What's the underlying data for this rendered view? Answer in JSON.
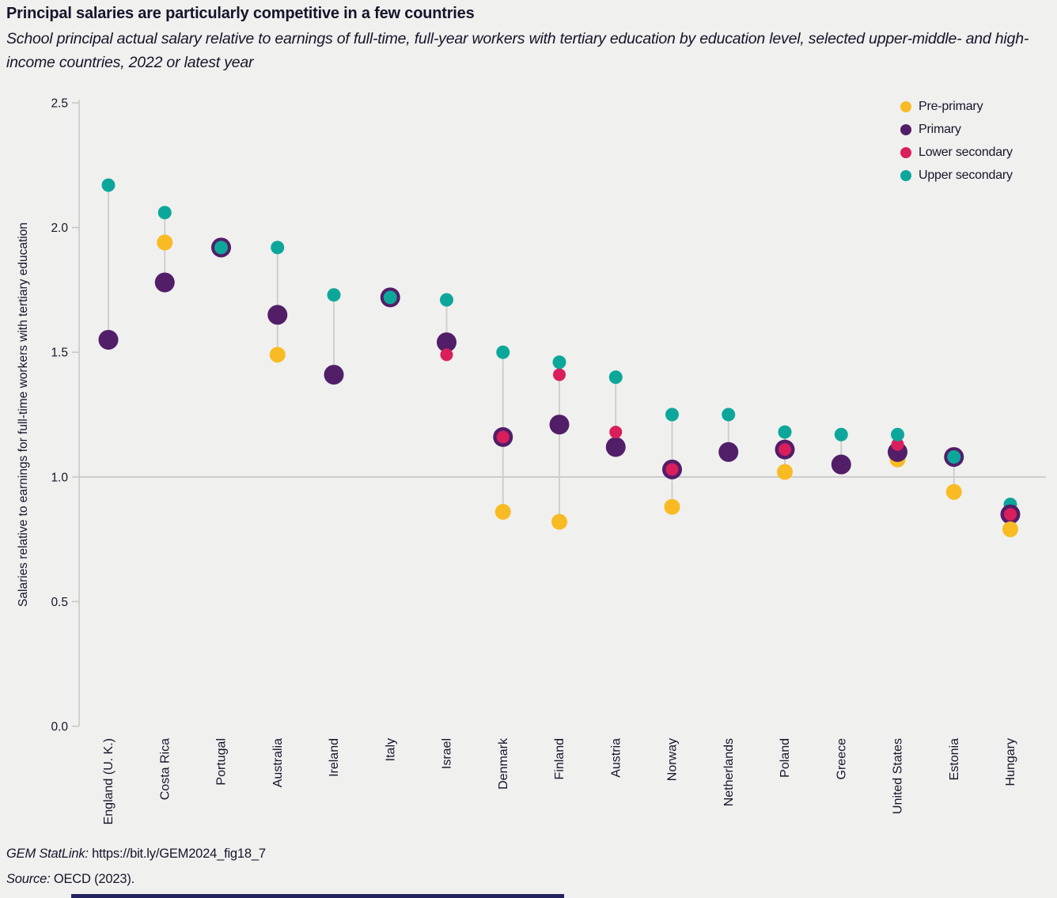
{
  "header": {
    "title": "Principal salaries are particularly competitive in a few countries",
    "subtitle": "School principal actual salary relative to earnings of full-time, full-year workers with tertiary education by education level, selected upper-middle- and high-income countries, 2022 or latest year"
  },
  "footer": {
    "statlink_label": "GEM StatLink:",
    "statlink_url": "https://bit.ly/GEM2024_fig18_7",
    "source_label": "Source:",
    "source_text": "OECD (2023)."
  },
  "colors": {
    "background": "#F0F0EF",
    "text_dark": "#15152A",
    "axis": "#C9C9C9",
    "connector": "#CDCCCB",
    "reference_line": "#C4C4C3",
    "footer_bar": "#23215E"
  },
  "chart_data": {
    "type": "scatter",
    "title": "Principal salaries are particularly competitive in a few countries",
    "xlabel": "",
    "ylabel": "Salaries relative to earnings for full-time workers with tertiary education",
    "ylim": [
      0,
      2.5
    ],
    "yticks": [
      0.0,
      0.5,
      1.0,
      1.5,
      2.0,
      2.5
    ],
    "reference_line": 1.0,
    "grid": false,
    "legend_position": "top-right",
    "series_meta": {
      "pre_primary": {
        "label": "Pre-primary",
        "color": "#F9BB24",
        "radius": 10
      },
      "primary": {
        "label": "Primary",
        "color": "#521E68",
        "radius": 12.5
      },
      "lower_secondary": {
        "label": "Lower secondary",
        "color": "#D91E5C",
        "radius": 8
      },
      "upper_secondary": {
        "label": "Upper secondary",
        "color": "#0CA79A",
        "radius": 8.5
      }
    },
    "series_order_default": [
      "pre_primary",
      "primary",
      "lower_secondary",
      "upper_secondary"
    ],
    "countries": [
      {
        "name": "England (U. K.)",
        "values": {
          "primary": 1.55,
          "upper_secondary": 2.17
        }
      },
      {
        "name": "Costa Rica",
        "values": {
          "pre_primary": 1.94,
          "primary": 1.78,
          "upper_secondary": 2.06
        }
      },
      {
        "name": "Portugal",
        "values": {
          "primary": 1.92,
          "upper_secondary": 1.92
        }
      },
      {
        "name": "Australia",
        "values": {
          "pre_primary": 1.49,
          "primary": 1.65,
          "upper_secondary": 1.92
        }
      },
      {
        "name": "Ireland",
        "values": {
          "primary": 1.41,
          "upper_secondary": 1.73
        }
      },
      {
        "name": "Italy",
        "values": {
          "primary": 1.72,
          "upper_secondary": 1.72
        }
      },
      {
        "name": "Israel",
        "values": {
          "primary": 1.54,
          "lower_secondary": 1.49,
          "upper_secondary": 1.71
        }
      },
      {
        "name": "Denmark",
        "values": {
          "pre_primary": 0.86,
          "primary": 1.16,
          "lower_secondary": 1.16,
          "upper_secondary": 1.5
        }
      },
      {
        "name": "Finland",
        "values": {
          "pre_primary": 0.82,
          "primary": 1.21,
          "lower_secondary": 1.41,
          "upper_secondary": 1.46
        }
      },
      {
        "name": "Austria",
        "values": {
          "primary": 1.12,
          "lower_secondary": 1.18,
          "upper_secondary": 1.4
        }
      },
      {
        "name": "Norway",
        "values": {
          "pre_primary": 0.88,
          "primary": 1.03,
          "lower_secondary": 1.03,
          "upper_secondary": 1.25
        }
      },
      {
        "name": "Netherlands",
        "values": {
          "primary": 1.1,
          "upper_secondary": 1.25
        }
      },
      {
        "name": "Poland",
        "values": {
          "pre_primary": 1.02,
          "primary": 1.11,
          "lower_secondary": 1.11,
          "upper_secondary": 1.18
        }
      },
      {
        "name": "Greece",
        "values": {
          "primary": 1.05,
          "upper_secondary": 1.17
        }
      },
      {
        "name": "United States",
        "values": {
          "pre_primary": 1.07,
          "primary": 1.1,
          "lower_secondary": 1.13,
          "upper_secondary": 1.17
        }
      },
      {
        "name": "Estonia",
        "values": {
          "pre_primary": 0.94,
          "primary": 1.08,
          "upper_secondary": 1.08
        }
      },
      {
        "name": "Hungary",
        "values": {
          "pre_primary": 0.79,
          "primary": 0.85,
          "lower_secondary": 0.85,
          "upper_secondary": 0.89
        },
        "draw_order": [
          "upper_secondary",
          "primary",
          "lower_secondary",
          "pre_primary"
        ]
      }
    ]
  }
}
